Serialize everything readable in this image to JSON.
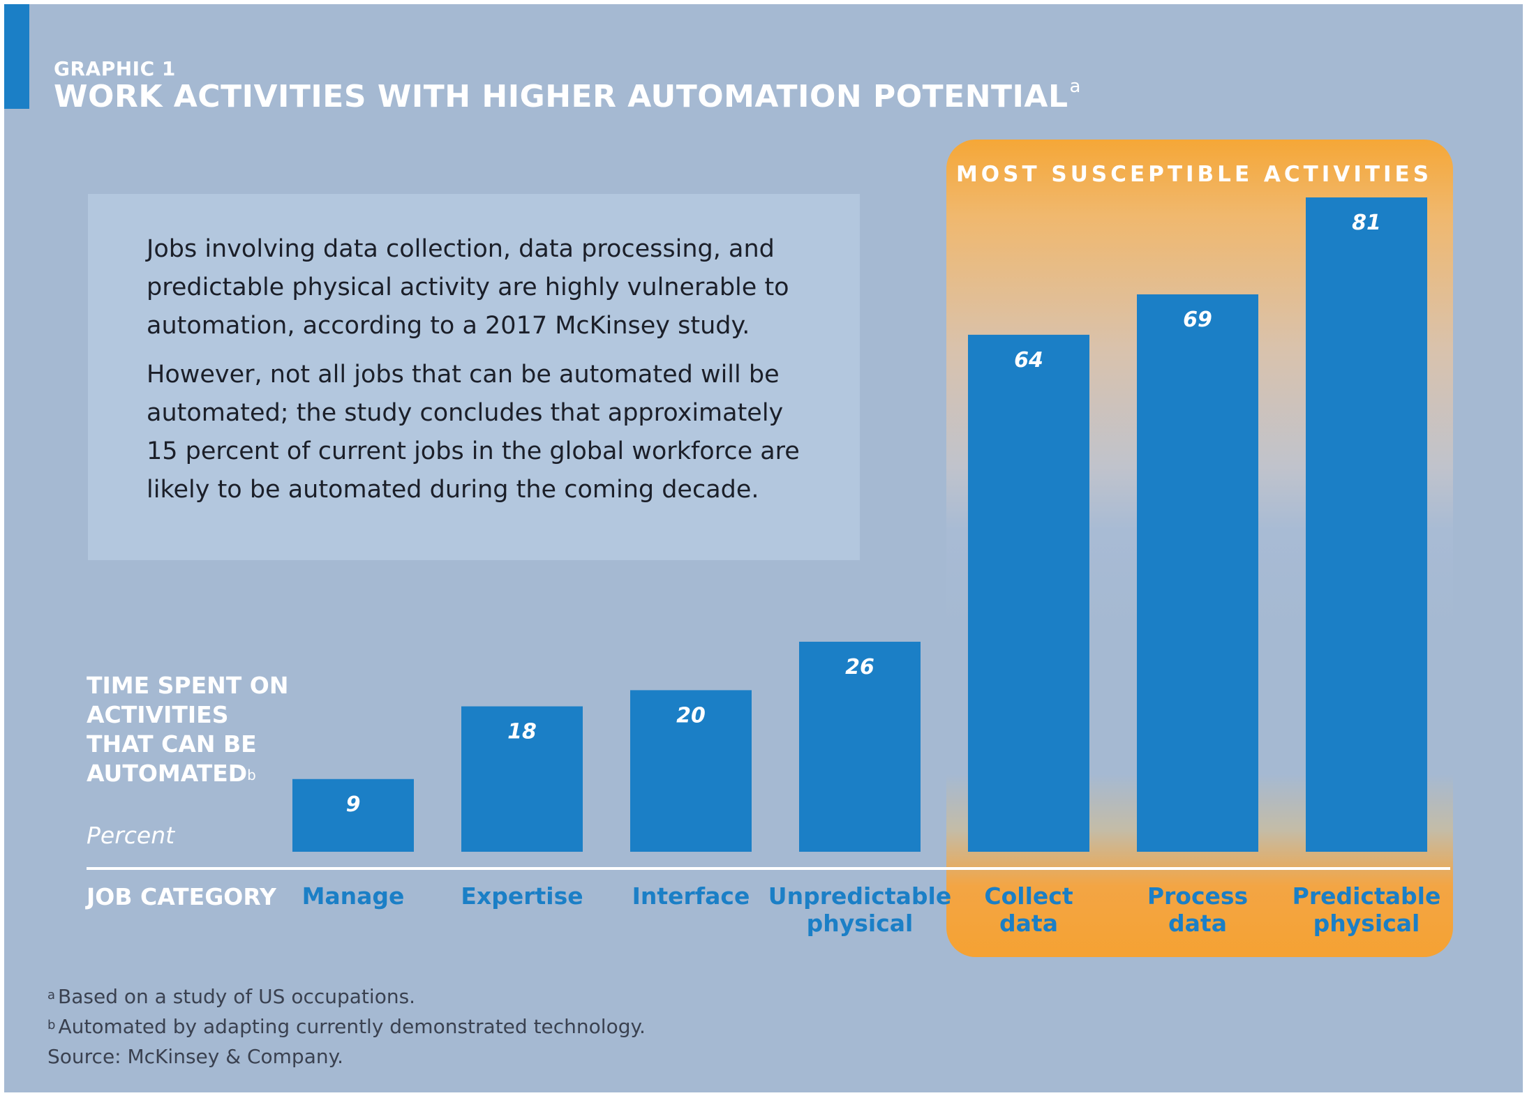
{
  "header": {
    "eyebrow": "GRAPHIC 1",
    "title": "WORK ACTIVITIES WITH HIGHER AUTOMATION POTENTIAL",
    "title_superscript": "a"
  },
  "description": {
    "paragraph_1": "Jobs involving data collection, data processing, and predictable physical activity are highly vulnerable to automation, according to a 2017 McKinsey study.",
    "paragraph_2": "However, not all jobs that can be automated will be automated; the study concludes that approximately 15 percent of current jobs in the global workforce are likely to be automated during the coming decade."
  },
  "highlight": {
    "label": "MOST SUSCEPTIBLE ACTIVITIES"
  },
  "chart_data": {
    "type": "bar",
    "title": "WORK ACTIVITIES WITH HIGHER AUTOMATION POTENTIAL",
    "ylabel": "TIME SPENT ON ACTIVITIES THAT CAN BE AUTOMATED",
    "ylabel_superscript": "b",
    "yunit": "Percent",
    "xlabel": "JOB CATEGORY",
    "categories": [
      [
        "Manage"
      ],
      [
        "Expertise"
      ],
      [
        "Interface"
      ],
      [
        "Unpredictable",
        "physical"
      ],
      [
        "Collect",
        "data"
      ],
      [
        "Process",
        "data"
      ],
      [
        "Predictable",
        "physical"
      ]
    ],
    "values": [
      9,
      18,
      20,
      26,
      64,
      69,
      81
    ],
    "ylim": [
      0,
      100
    ],
    "highlighted_categories": [
      "Collect data",
      "Process data",
      "Predictable physical"
    ],
    "grid": false
  },
  "footnotes": [
    {
      "mark": "a",
      "text": "Based on a study of US occupations."
    },
    {
      "mark": "b",
      "text": "Automated by adapting currently demonstrated technology."
    },
    {
      "mark": "",
      "text": "Source: McKinsey & Company."
    }
  ],
  "colors": {
    "background": "#a5b9d2",
    "bar": "#1b7fc6",
    "accent": "#1b7fc6",
    "highlight": "#f5a233",
    "text_box": "#b3c7de"
  }
}
